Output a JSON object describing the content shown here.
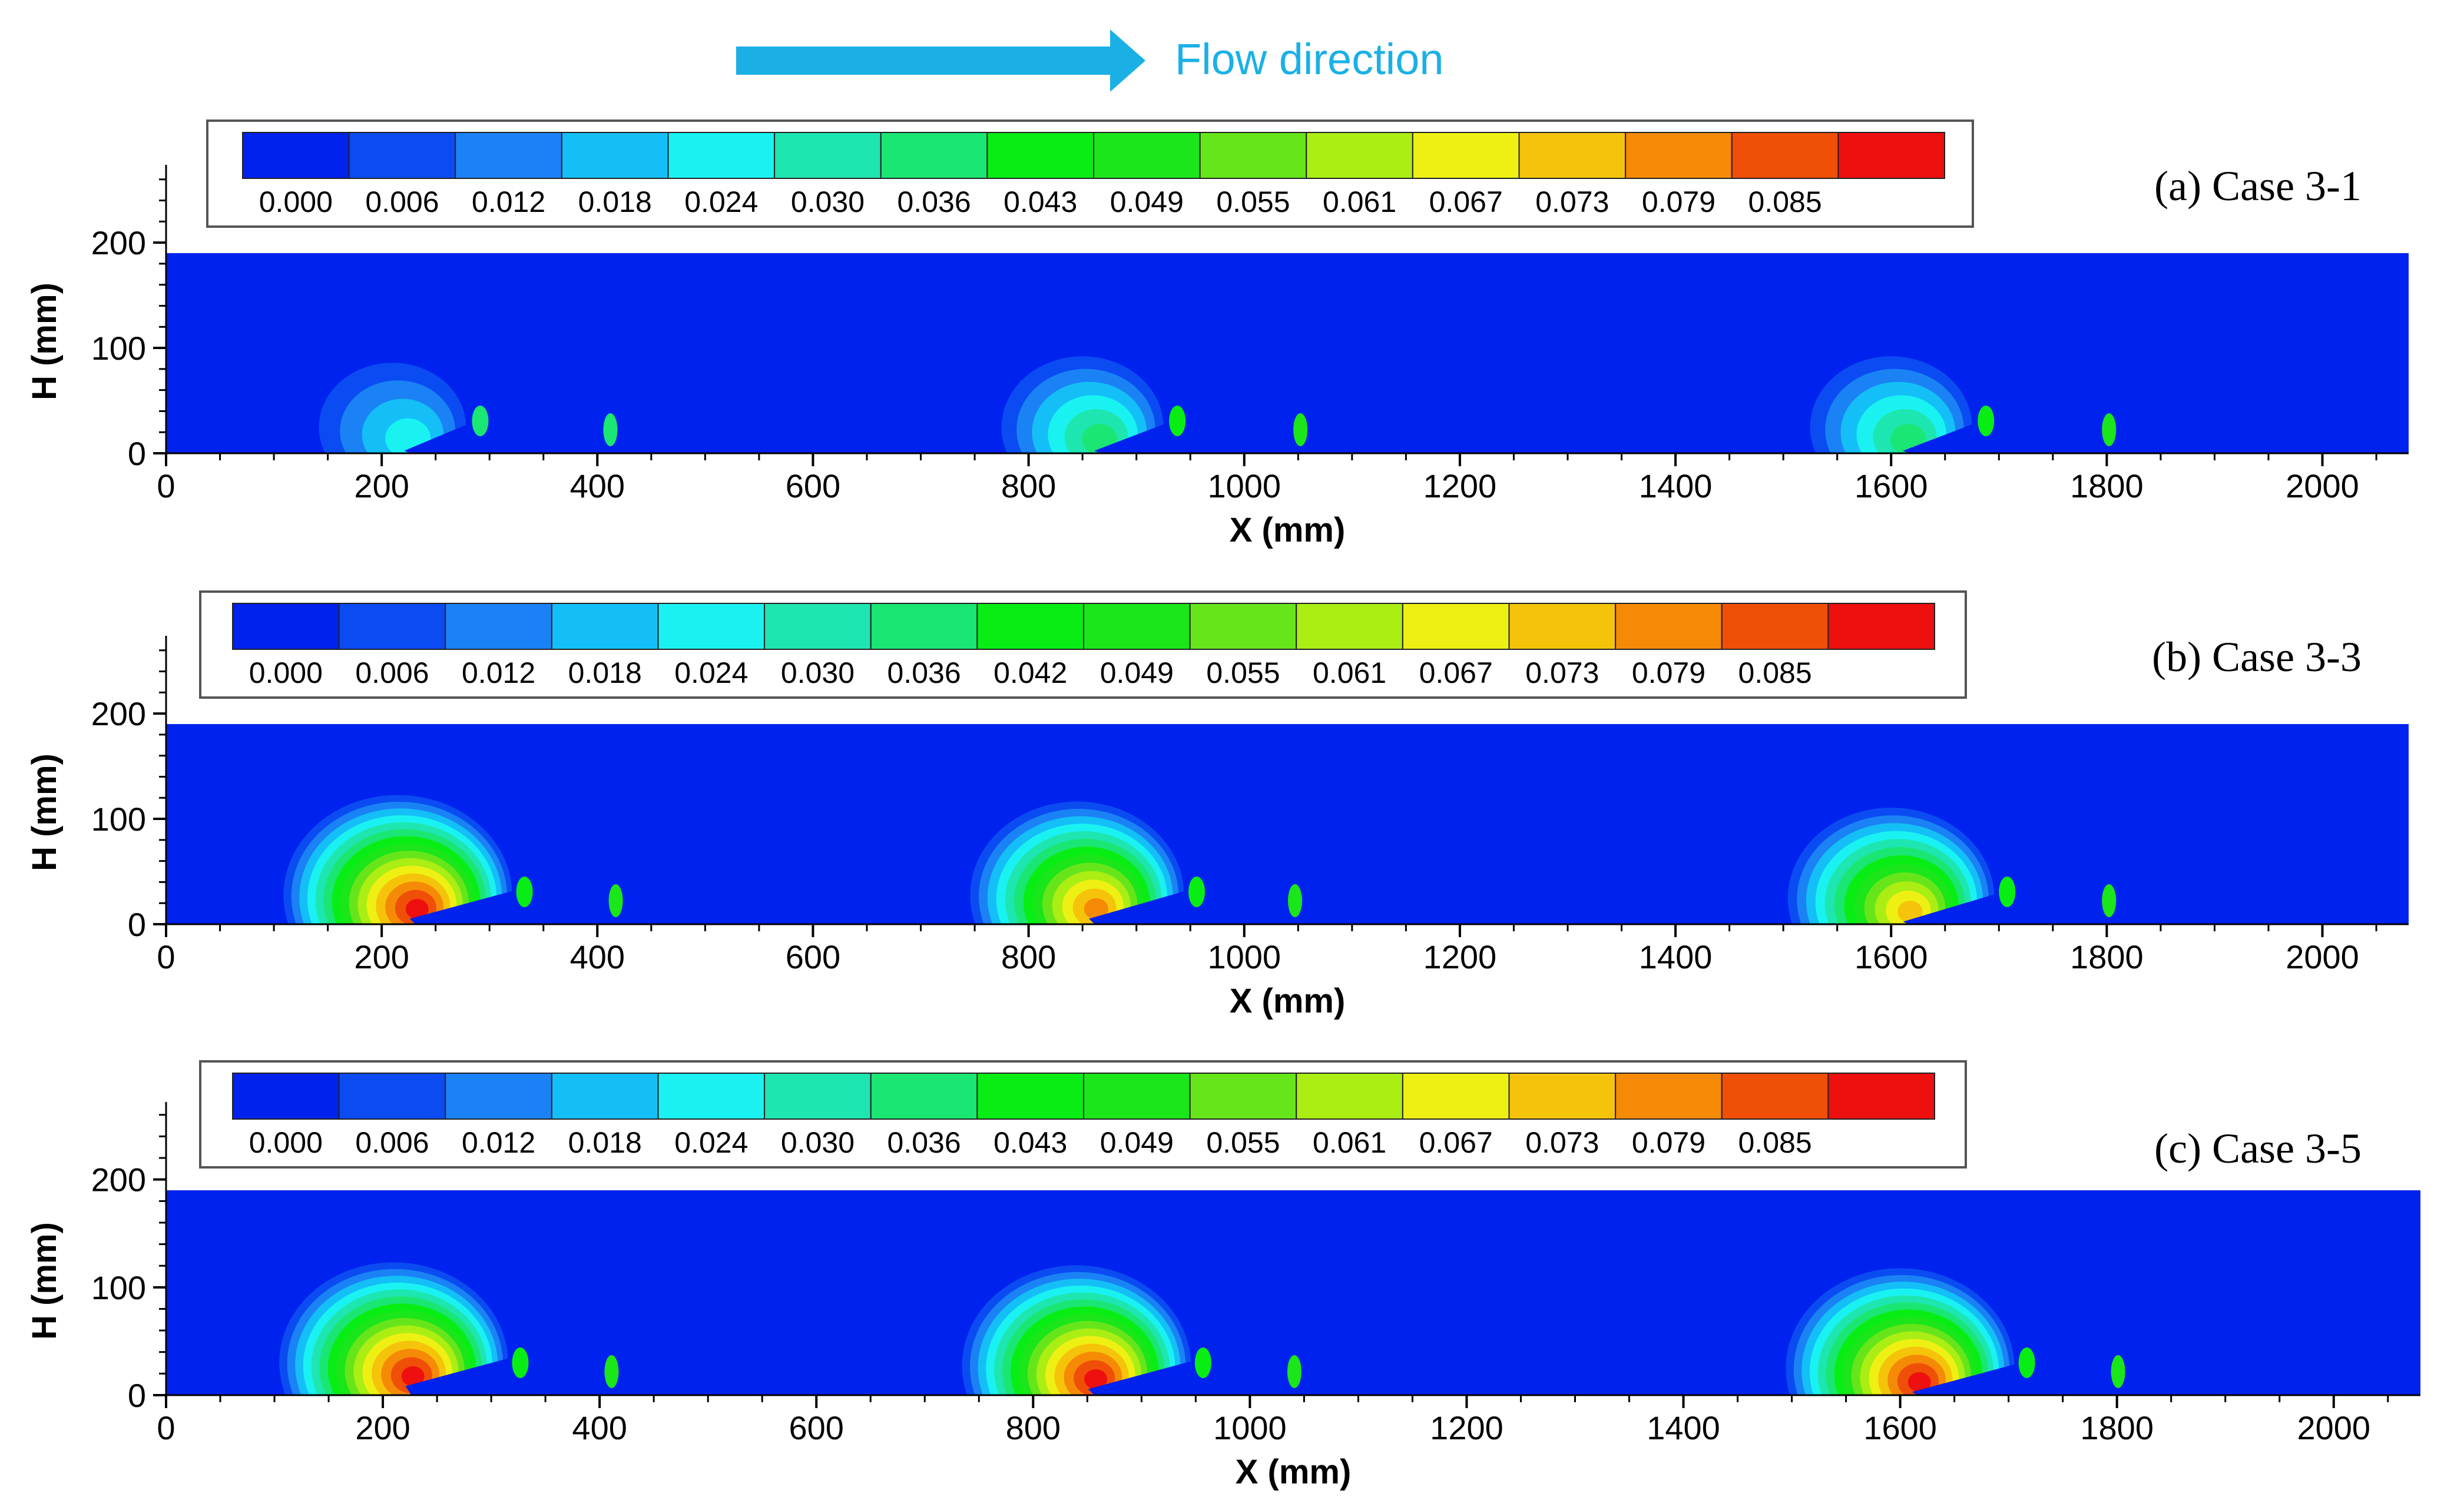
{
  "header": {
    "flow_label": "Flow direction",
    "arrow_color": "#1ab0e6"
  },
  "colorbar": {
    "colors": [
      "#0022ee",
      "#0a4cf2",
      "#1a82f5",
      "#14bff7",
      "#1af2f2",
      "#1ee6b0",
      "#1ae673",
      "#08ee14",
      "#1ae61a",
      "#66e61a",
      "#aaee14",
      "#eef014",
      "#f5c40a",
      "#f58a06",
      "#f04f08",
      "#ee0f0f"
    ],
    "labels_by_case": [
      [
        "0.000",
        "0.006",
        "0.012",
        "0.018",
        "0.024",
        "0.030",
        "0.036",
        "0.043",
        "0.049",
        "0.055",
        "0.061",
        "0.067",
        "0.073",
        "0.079",
        "0.085"
      ],
      [
        "0.000",
        "0.006",
        "0.012",
        "0.018",
        "0.024",
        "0.030",
        "0.036",
        "0.042",
        "0.049",
        "0.055",
        "0.061",
        "0.067",
        "0.073",
        "0.079",
        "0.085"
      ],
      [
        "0.000",
        "0.006",
        "0.012",
        "0.018",
        "0.024",
        "0.030",
        "0.036",
        "0.043",
        "0.049",
        "0.055",
        "0.061",
        "0.067",
        "0.073",
        "0.079",
        "0.085"
      ]
    ]
  },
  "chart_data": [
    {
      "type": "heatmap",
      "title": "(a) Case 3-1",
      "xlabel": "X (mm)",
      "ylabel": "H (mm)",
      "xlim": [
        0,
        2080
      ],
      "ylim": [
        0,
        190
      ],
      "xticks": [
        0,
        200,
        400,
        600,
        800,
        1000,
        1200,
        1400,
        1600,
        1800,
        2000
      ],
      "yticks": [
        0,
        100,
        200
      ],
      "background_color": "#0022ee",
      "plumes": [
        {
          "x": 210,
          "h": 45,
          "max_level": 4
        },
        {
          "x": 850,
          "h": 45,
          "max_level": 6
        },
        {
          "x": 1600,
          "h": 45,
          "max_level": 6
        }
      ]
    },
    {
      "type": "heatmap",
      "title": "(b) Case 3-3",
      "xlabel": "X (mm)",
      "ylabel": "H (mm)",
      "xlim": [
        0,
        2080
      ],
      "ylim": [
        0,
        190
      ],
      "xticks": [
        0,
        200,
        400,
        600,
        800,
        1000,
        1200,
        1400,
        1600,
        1800,
        2000
      ],
      "yticks": [
        0,
        100,
        200
      ],
      "background_color": "#0022ee",
      "plumes": [
        {
          "x": 215,
          "h": 50,
          "max_level": 15
        },
        {
          "x": 845,
          "h": 50,
          "max_level": 13
        },
        {
          "x": 1600,
          "h": 45,
          "max_level": 12
        }
      ]
    },
    {
      "type": "heatmap",
      "title": "(c) Case 3-5",
      "xlabel": "X (mm)",
      "ylabel": "H (mm)",
      "xlim": [
        0,
        2080
      ],
      "ylim": [
        0,
        190
      ],
      "xticks": [
        0,
        200,
        400,
        600,
        800,
        1000,
        1200,
        1400,
        1600,
        1800,
        2000
      ],
      "yticks": [
        0,
        100,
        200
      ],
      "background_color": "#0022ee",
      "plumes": [
        {
          "x": 210,
          "h": 55,
          "max_level": 15
        },
        {
          "x": 840,
          "h": 50,
          "max_level": 15
        },
        {
          "x": 1600,
          "h": 45,
          "max_level": 15
        }
      ]
    }
  ]
}
